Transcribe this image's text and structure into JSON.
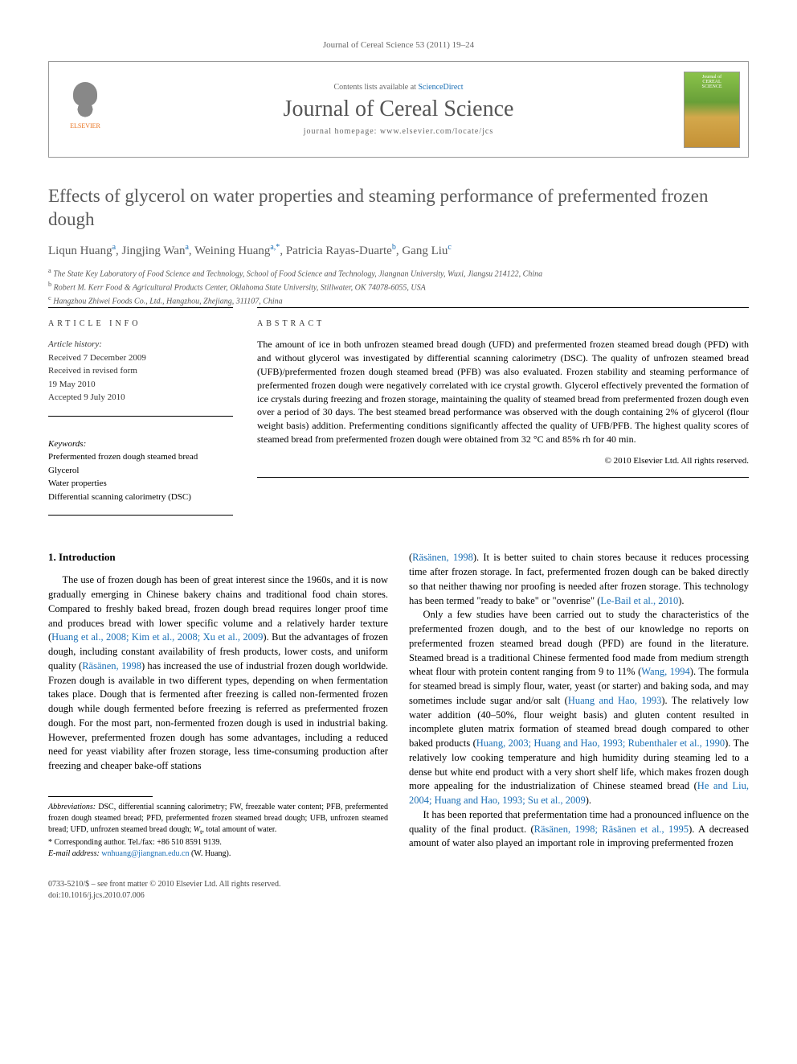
{
  "journal_ref": "Journal of Cereal Science 53 (2011) 19–24",
  "header": {
    "contents_pre": "Contents lists available at ",
    "contents_link": "ScienceDirect",
    "journal_title": "Journal of Cereal Science",
    "homepage": "journal homepage: www.elsevier.com/locate/jcs",
    "elsevier": "ELSEVIER",
    "cover_top": "Journal of",
    "cover_mid": "CEREAL",
    "cover_bot": "SCIENCE"
  },
  "title": "Effects of glycerol on water properties and steaming performance of prefermented frozen dough",
  "authors": [
    {
      "name": "Liqun Huang",
      "aff": "a"
    },
    {
      "name": "Jingjing Wan",
      "aff": "a"
    },
    {
      "name": "Weining Huang",
      "aff": "a,*"
    },
    {
      "name": "Patricia Rayas-Duarte",
      "aff": "b"
    },
    {
      "name": "Gang Liu",
      "aff": "c"
    }
  ],
  "affiliations": {
    "a": "The State Key Laboratory of Food Science and Technology, School of Food Science and Technology, Jiangnan University, Wuxi, Jiangsu 214122, China",
    "b": "Robert M. Kerr Food & Agricultural Products Center, Oklahoma State University, Stillwater, OK 74078-6055, USA",
    "c": "Hangzhou Zhiwei Foods Co., Ltd., Hangzhou, Zhejiang, 311107, China"
  },
  "article_info": {
    "label": "ARTICLE INFO",
    "history_head": "Article history:",
    "received": "Received 7 December 2009",
    "revised": "Received in revised form",
    "revised_date": "19 May 2010",
    "accepted": "Accepted 9 July 2010",
    "keywords_head": "Keywords:",
    "keywords": [
      "Prefermented frozen dough steamed bread",
      "Glycerol",
      "Water properties",
      "Differential scanning calorimetry (DSC)"
    ]
  },
  "abstract": {
    "label": "ABSTRACT",
    "text": "The amount of ice in both unfrozen steamed bread dough (UFD) and prefermented frozen steamed bread dough (PFD) with and without glycerol was investigated by differential scanning calorimetry (DSC). The quality of unfrozen steamed bread (UFB)/prefermented frozen dough steamed bread (PFB) was also evaluated. Frozen stability and steaming performance of prefermented frozen dough were negatively correlated with ice crystal growth. Glycerol effectively prevented the formation of ice crystals during freezing and frozen storage, maintaining the quality of steamed bread from prefermented frozen dough even over a period of 30 days. The best steamed bread performance was observed with the dough containing 2% of glycerol (flour weight basis) addition. Prefermenting conditions significantly affected the quality of UFB/PFB. The highest quality scores of steamed bread from prefermented frozen dough were obtained from 32 °C and 85% rh for 40 min.",
    "copyright": "© 2010 Elsevier Ltd. All rights reserved."
  },
  "section1": {
    "heading": "1. Introduction",
    "p1a": "The use of frozen dough has been of great interest since the 1960s, and it is now gradually emerging in Chinese bakery chains and traditional food chain stores. Compared to freshly baked bread, frozen dough bread requires longer proof time and produces bread with lower specific volume and a relatively harder texture (",
    "p1cite1": "Huang et al., 2008; Kim et al., 2008; Xu et al., 2009",
    "p1b": "). But the advantages of frozen dough, including constant availability of fresh products, lower costs, and uniform quality (",
    "p1cite2": "Räsänen, 1998",
    "p1c": ") has increased the use of industrial frozen dough worldwide. Frozen dough is available in two different types, depending on when fermentation takes place. Dough that is fermented after freezing is called non-fermented frozen dough while dough fermented before freezing is referred as prefermented frozen dough. For the most part, non-fermented frozen dough is used in industrial baking. However, prefermented frozen dough has some advantages, including a reduced need for yeast viability after frozen storage, less time-consuming production after freezing and cheaper bake-off stations ",
    "p2pre": "(",
    "p2cite1": "Räsänen, 1998",
    "p2a": "). It is better suited to chain stores because it reduces processing time after frozen storage. In fact, prefermented frozen dough can be baked directly so that neither thawing nor proofing is needed after frozen storage. This technology has been termed \"ready to bake\" or \"ovenrise\" (",
    "p2cite2": "Le-Bail et al., 2010",
    "p2b": ").",
    "p3a": "Only a few studies have been carried out to study the characteristics of the prefermented frozen dough, and to the best of our knowledge no reports on prefermented frozen steamed bread dough (PFD) are found in the literature. Steamed bread is a traditional Chinese fermented food made from medium strength wheat flour with protein content ranging from 9 to 11% (",
    "p3cite1": "Wang, 1994",
    "p3b": "). The formula for steamed bread is simply flour, water, yeast (or starter) and baking soda, and may sometimes include sugar and/or salt (",
    "p3cite2": "Huang and Hao, 1993",
    "p3c": "). The relatively low water addition (40–50%, flour weight basis) and gluten content resulted in incomplete gluten matrix formation of steamed bread dough compared to other baked products (",
    "p3cite3": "Huang, 2003; Huang and Hao, 1993; Rubenthaler et al., 1990",
    "p3d": "). The relatively low cooking temperature and high humidity during steaming led to a dense but white end product with a very short shelf life, which makes frozen dough more appealing for the industrialization of Chinese steamed bread (",
    "p3cite4": "He and Liu, 2004; Huang and Hao, 1993; Su et al., 2009",
    "p3e": ").",
    "p4a": "It has been reported that prefermentation time had a pronounced influence on the quality of the final product. (",
    "p4cite1": "Räsänen, 1998; Räsänen et al., 1995",
    "p4b": "). A decreased amount of water also played an important role in improving prefermented frozen"
  },
  "footnotes": {
    "abbrev_head": "Abbreviations:",
    "abbrev_text": " DSC, differential scanning calorimetry; FW, freezable water content; PFB, prefermented frozen dough steamed bread; PFD, prefermented frozen steamed bread dough; UFB, unfrozen steamed bread; UFD, unfrozen steamed bread dough; ",
    "abbrev_wt": "W",
    "abbrev_wt_sub": "t",
    "abbrev_wt_tail": ", total amount of water.",
    "corr": "* Corresponding author. Tel./fax: +86 510 8591 9139.",
    "email_head": "E-mail address: ",
    "email": "wnhuang@jiangnan.edu.cn",
    "email_tail": " (W. Huang)."
  },
  "footer": {
    "line1": "0733-5210/$ – see front matter © 2010 Elsevier Ltd. All rights reserved.",
    "line2": "doi:10.1016/j.jcs.2010.07.006"
  },
  "colors": {
    "link": "#1a6fb5",
    "heading": "#5a5a5a",
    "orange": "#e9711c"
  }
}
